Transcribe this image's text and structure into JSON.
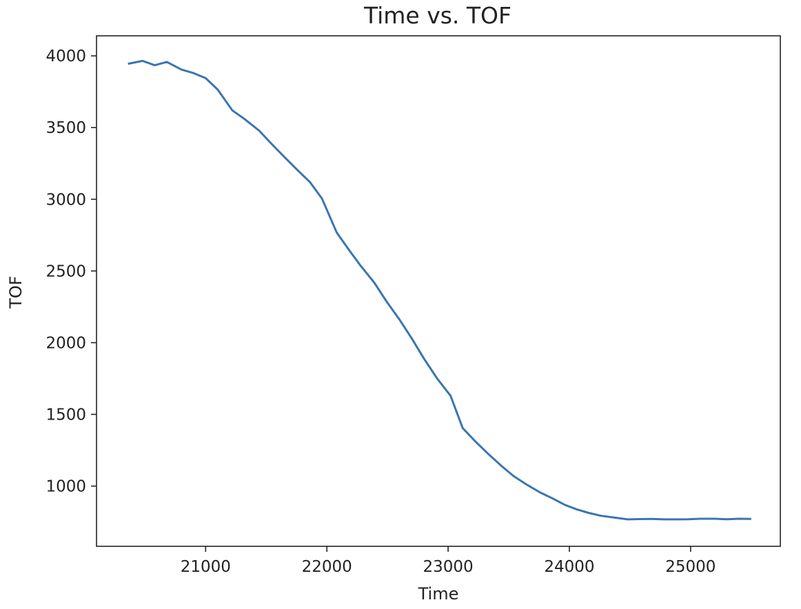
{
  "chart_data": {
    "type": "line",
    "title": "Time vs. TOF",
    "xlabel": "Time",
    "ylabel": "TOF",
    "xlim": [
      20100,
      25740
    ],
    "ylim": [
      580,
      4140
    ],
    "xticks": [
      21000,
      22000,
      23000,
      24000,
      25000
    ],
    "yticks": [
      1000,
      1500,
      2000,
      2500,
      3000,
      3500,
      4000
    ],
    "grid": false,
    "series": [
      {
        "name": "TOF",
        "color": "#3a75b0",
        "x": [
          20360,
          20480,
          20580,
          20680,
          20800,
          20900,
          21000,
          21100,
          21220,
          21320,
          21440,
          21540,
          21650,
          21750,
          21860,
          21960,
          22080,
          22180,
          22280,
          22390,
          22490,
          22600,
          22700,
          22800,
          22910,
          23020,
          23120,
          23220,
          23330,
          23440,
          23540,
          23640,
          23760,
          23860,
          23960,
          24060,
          24160,
          24260,
          24360,
          24480,
          24580,
          24680,
          24780,
          24880,
          24980,
          25080,
          25200,
          25300,
          25400,
          25500
        ],
        "y": [
          3945,
          3965,
          3935,
          3958,
          3905,
          3880,
          3845,
          3765,
          3620,
          3560,
          3480,
          3390,
          3295,
          3210,
          3120,
          3005,
          2770,
          2650,
          2535,
          2420,
          2290,
          2160,
          2030,
          1890,
          1750,
          1630,
          1405,
          1315,
          1225,
          1140,
          1070,
          1015,
          955,
          915,
          870,
          838,
          813,
          793,
          782,
          768,
          770,
          771,
          768,
          768,
          769,
          772,
          772,
          769,
          772,
          771
        ]
      }
    ]
  }
}
